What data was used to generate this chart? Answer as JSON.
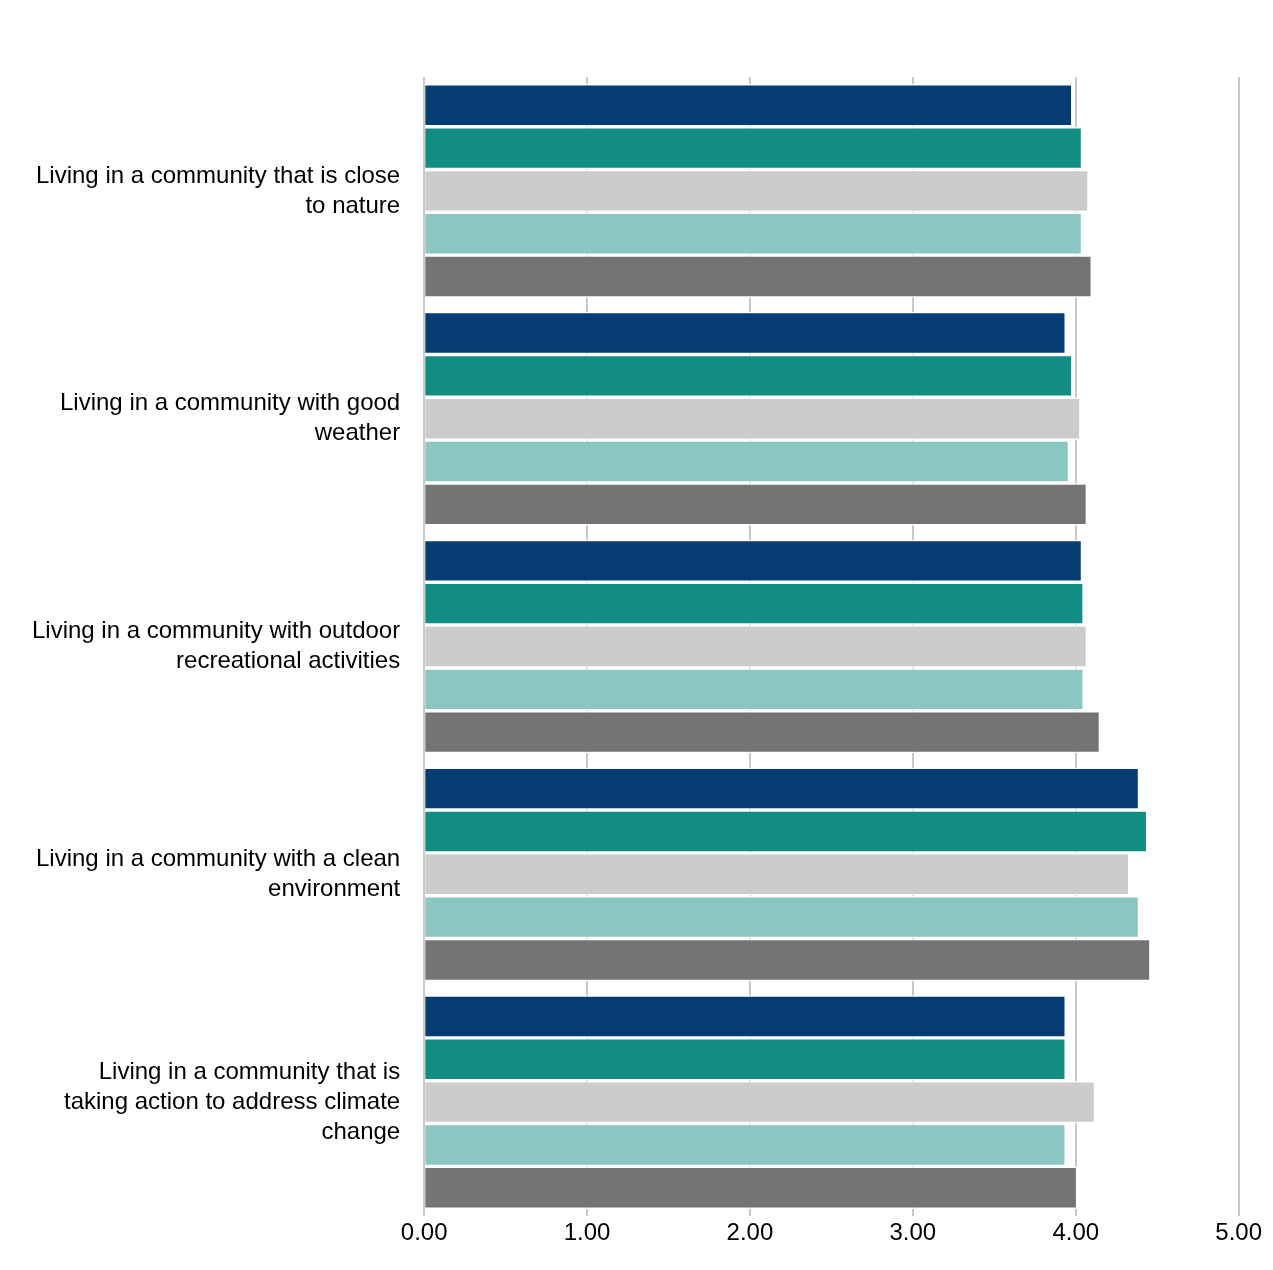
{
  "chart_data": {
    "type": "bar",
    "orientation": "horizontal",
    "categories": [
      "Living in a community that is close to nature",
      "Living in a community with good weather",
      "Living in a community with outdoor recreational activities",
      "Living in a community with a clean environment",
      "Living in a community that is taking action to address climate change"
    ],
    "series": [
      {
        "color": "#053c73",
        "values": [
          3.98,
          3.94,
          4.04,
          4.39,
          3.94
        ]
      },
      {
        "color": "#118d83",
        "values": [
          4.04,
          3.98,
          4.05,
          4.44,
          3.94
        ]
      },
      {
        "color": "#cccccc",
        "values": [
          4.08,
          4.03,
          4.07,
          4.33,
          4.12
        ]
      },
      {
        "color": "#8ac6c2",
        "values": [
          4.04,
          3.96,
          4.05,
          4.39,
          3.94
        ]
      },
      {
        "color": "#747474",
        "values": [
          4.1,
          4.07,
          4.15,
          4.46,
          4.01
        ]
      }
    ],
    "xlim": [
      0,
      5
    ],
    "xticks": [
      {
        "value": 0,
        "label": "0.00"
      },
      {
        "value": 1,
        "label": "1.00"
      },
      {
        "value": 2,
        "label": "2.00"
      },
      {
        "value": 3,
        "label": "3.00"
      },
      {
        "value": 4,
        "label": "4.00"
      },
      {
        "value": 5,
        "label": "5.00"
      }
    ],
    "grid": "x",
    "legend": false
  }
}
